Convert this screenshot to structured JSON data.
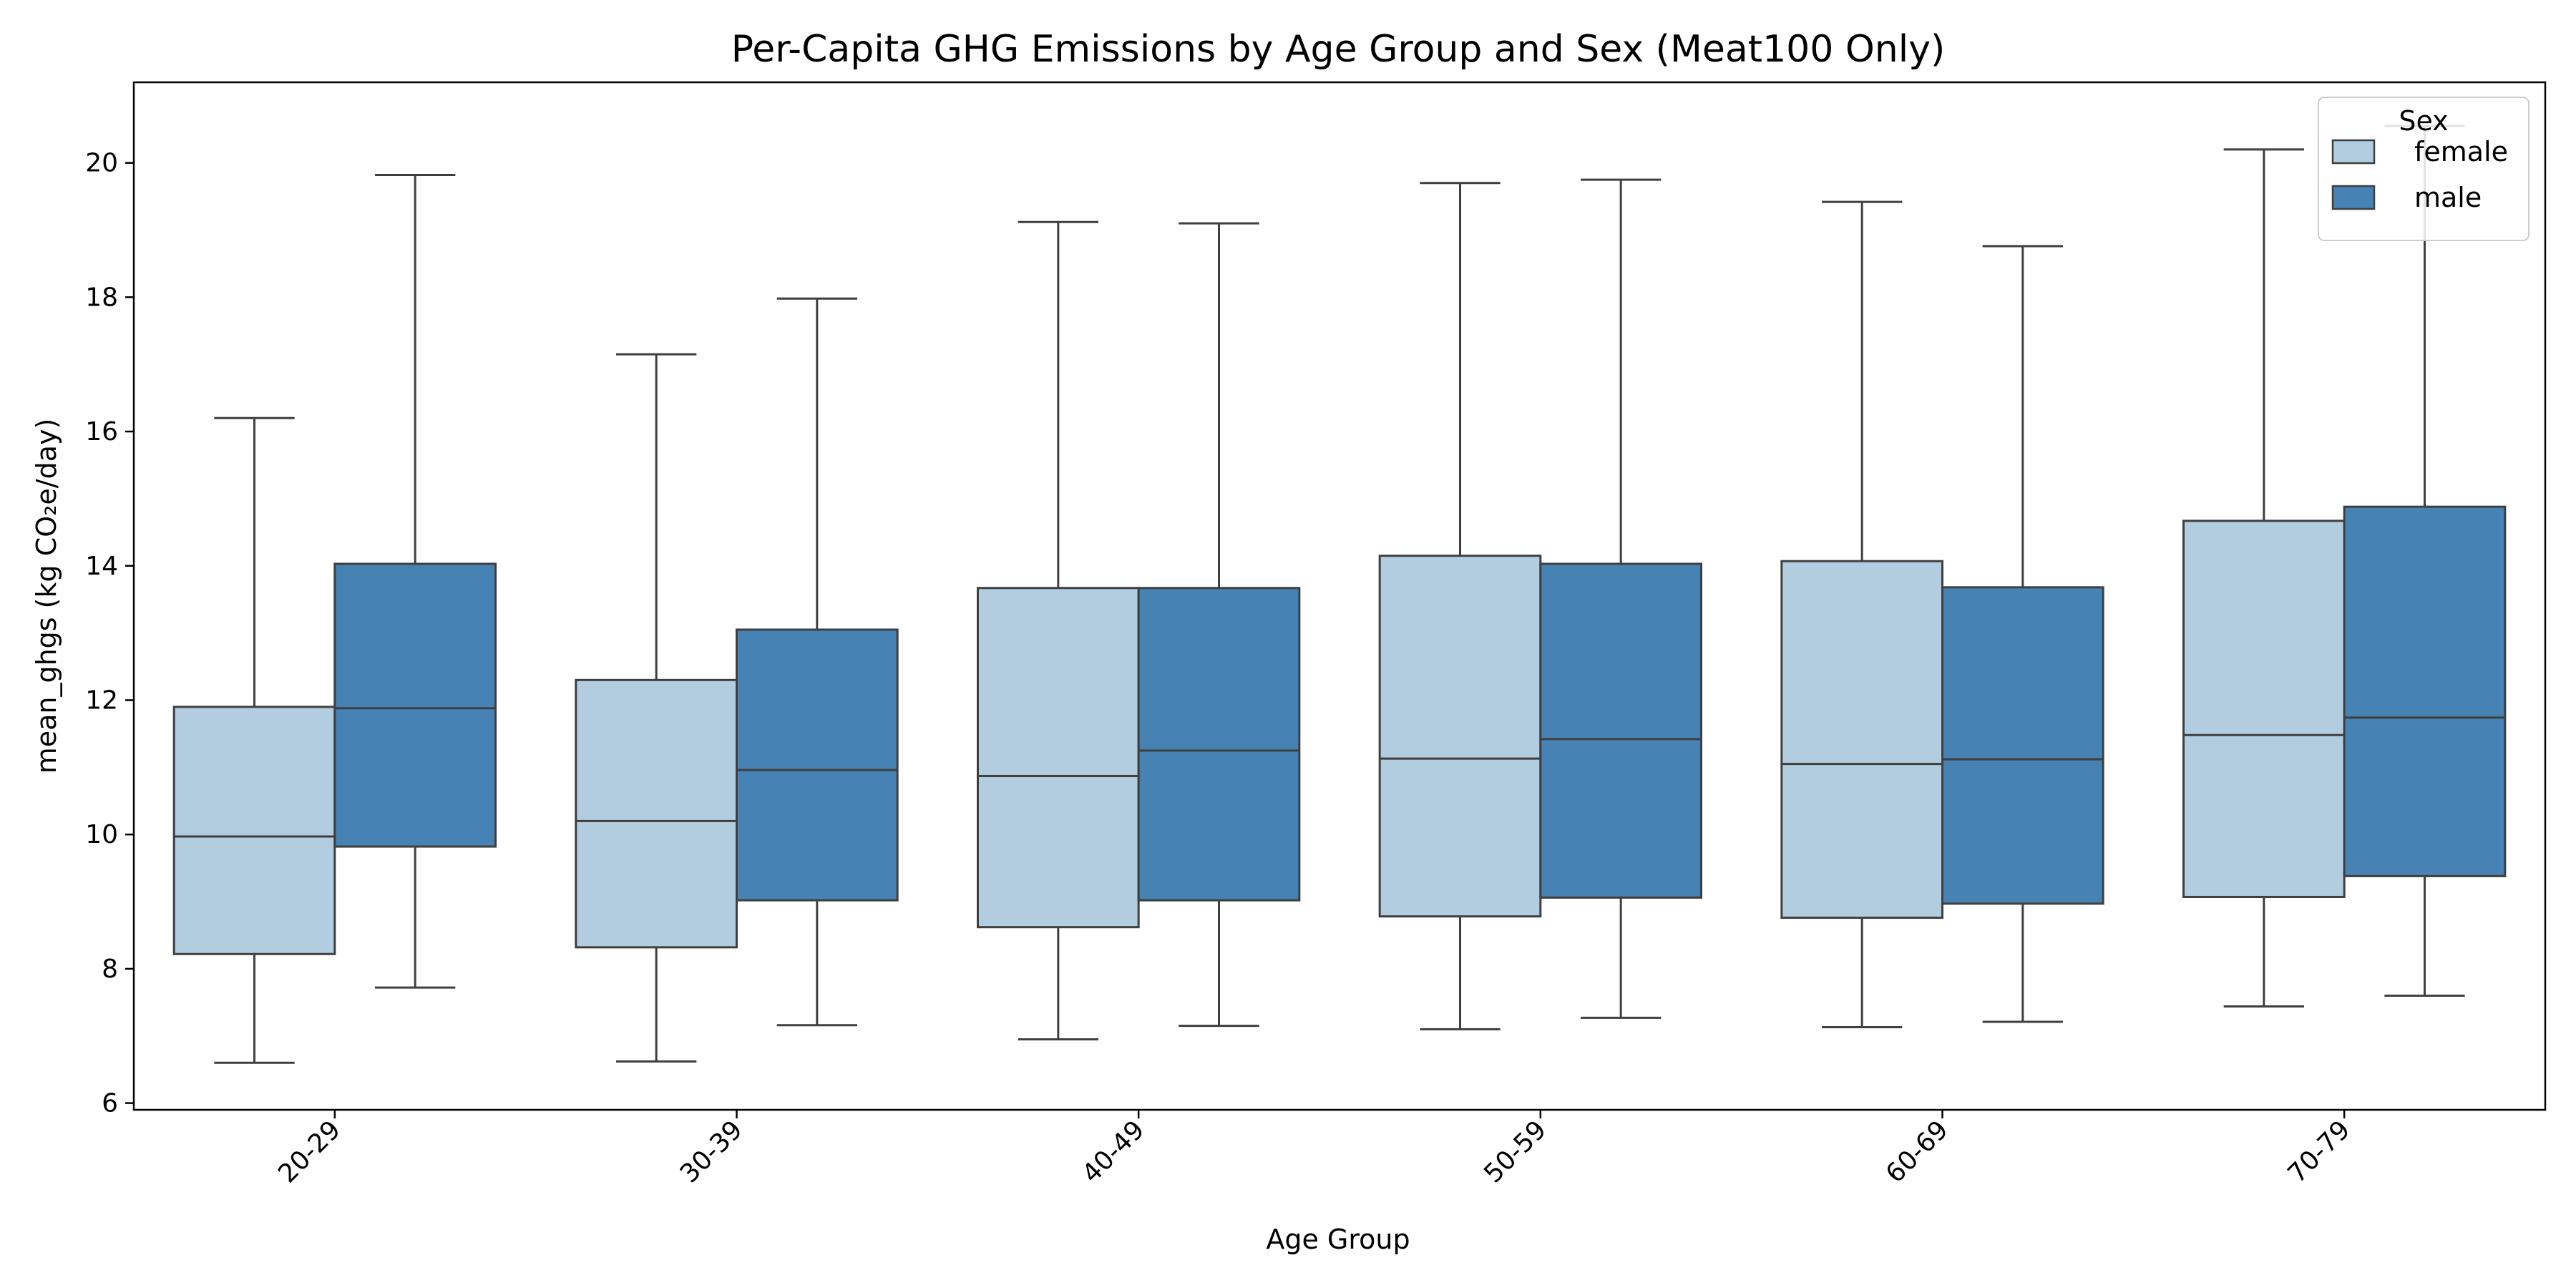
{
  "chart_data": {
    "type": "box",
    "title": "Per-Capita GHG Emissions by Age Group and Sex (Meat100 Only)",
    "xlabel": "Age Group",
    "ylabel": "mean_ghgs (kg CO₂e/day)",
    "categories": [
      "20-29",
      "30-39",
      "40-49",
      "50-59",
      "60-69",
      "70-79"
    ],
    "ylim": [
      5.9,
      21.2
    ],
    "yticks": [
      6,
      8,
      10,
      12,
      14,
      16,
      18,
      20
    ],
    "grid": false,
    "legend": {
      "title": "Sex",
      "placement": "top-right"
    },
    "series": [
      {
        "name": "female",
        "color": "#b3cde0",
        "boxes": [
          {
            "whisker_low": 6.6,
            "q1": 8.22,
            "median": 9.97,
            "q3": 11.9,
            "whisker_high": 16.2
          },
          {
            "whisker_low": 6.62,
            "q1": 8.32,
            "median": 10.2,
            "q3": 12.3,
            "whisker_high": 17.15
          },
          {
            "whisker_low": 6.95,
            "q1": 8.62,
            "median": 10.87,
            "q3": 13.67,
            "whisker_high": 19.12
          },
          {
            "whisker_low": 7.1,
            "q1": 8.78,
            "median": 11.13,
            "q3": 14.15,
            "whisker_high": 19.7
          },
          {
            "whisker_low": 7.13,
            "q1": 8.76,
            "median": 11.05,
            "q3": 14.07,
            "whisker_high": 19.42
          },
          {
            "whisker_low": 7.44,
            "q1": 9.07,
            "median": 11.48,
            "q3": 14.67,
            "whisker_high": 20.2
          }
        ]
      },
      {
        "name": "male",
        "color": "#4682b4",
        "boxes": [
          {
            "whisker_low": 7.72,
            "q1": 9.82,
            "median": 11.88,
            "q3": 14.03,
            "whisker_high": 19.82
          },
          {
            "whisker_low": 7.16,
            "q1": 9.02,
            "median": 10.96,
            "q3": 13.05,
            "whisker_high": 17.98
          },
          {
            "whisker_low": 7.15,
            "q1": 9.02,
            "median": 11.25,
            "q3": 13.67,
            "whisker_high": 19.1
          },
          {
            "whisker_low": 7.27,
            "q1": 9.06,
            "median": 11.42,
            "q3": 14.03,
            "whisker_high": 19.75
          },
          {
            "whisker_low": 7.21,
            "q1": 8.97,
            "median": 11.12,
            "q3": 13.68,
            "whisker_high": 18.76
          },
          {
            "whisker_low": 7.6,
            "q1": 9.38,
            "median": 11.74,
            "q3": 14.88,
            "whisker_high": 20.55
          }
        ]
      }
    ]
  }
}
